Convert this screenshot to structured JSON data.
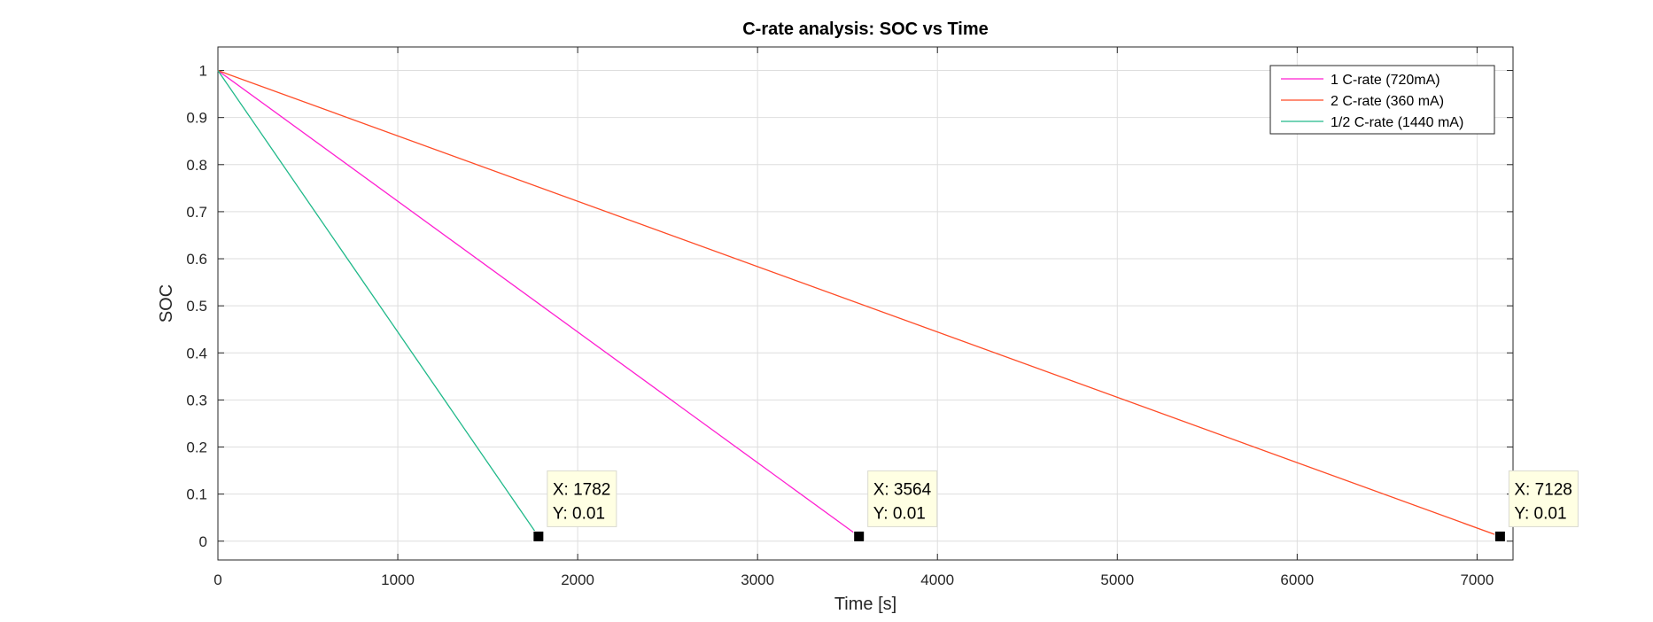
{
  "chart_data": {
    "type": "line",
    "title": "C-rate analysis: SOC vs Time",
    "xlabel": "Time [s]",
    "ylabel": "SOC",
    "xlim": [
      0,
      7200
    ],
    "ylim": [
      -0.04,
      1.05
    ],
    "xticks": [
      0,
      1000,
      2000,
      3000,
      4000,
      5000,
      6000,
      7000
    ],
    "yticks": [
      0,
      0.1,
      0.2,
      0.3,
      0.4,
      0.5,
      0.6,
      0.7,
      0.8,
      0.9,
      1
    ],
    "xtick_labels": [
      "0",
      "1000",
      "2000",
      "3000",
      "4000",
      "5000",
      "6000",
      "7000"
    ],
    "ytick_labels": [
      "0",
      "0.1",
      "0.2",
      "0.3",
      "0.4",
      "0.5",
      "0.6",
      "0.7",
      "0.8",
      "0.9",
      "1"
    ],
    "grid": true,
    "legend_position": "top-right",
    "series": [
      {
        "name": "1 C-rate (720mA)",
        "color": "#ff1fd1",
        "x": [
          0,
          3564
        ],
        "y": [
          1,
          0.01
        ]
      },
      {
        "name": "2 C-rate (360 mA)",
        "color": "#ff4b26",
        "x": [
          0,
          7128
        ],
        "y": [
          1,
          0.01
        ]
      },
      {
        "name": "1/2 C-rate (1440 mA)",
        "color": "#21b98a",
        "x": [
          0,
          1782
        ],
        "y": [
          1,
          0.01
        ]
      }
    ],
    "datatips": [
      {
        "x": 1782,
        "y": 0.01,
        "label_x": "X: 1782",
        "label_y": "Y: 0.01"
      },
      {
        "x": 3564,
        "y": 0.01,
        "label_x": "X: 3564",
        "label_y": "Y: 0.01"
      },
      {
        "x": 7128,
        "y": 0.01,
        "label_x": "X: 7128",
        "label_y": "Y: 0.01"
      }
    ]
  }
}
